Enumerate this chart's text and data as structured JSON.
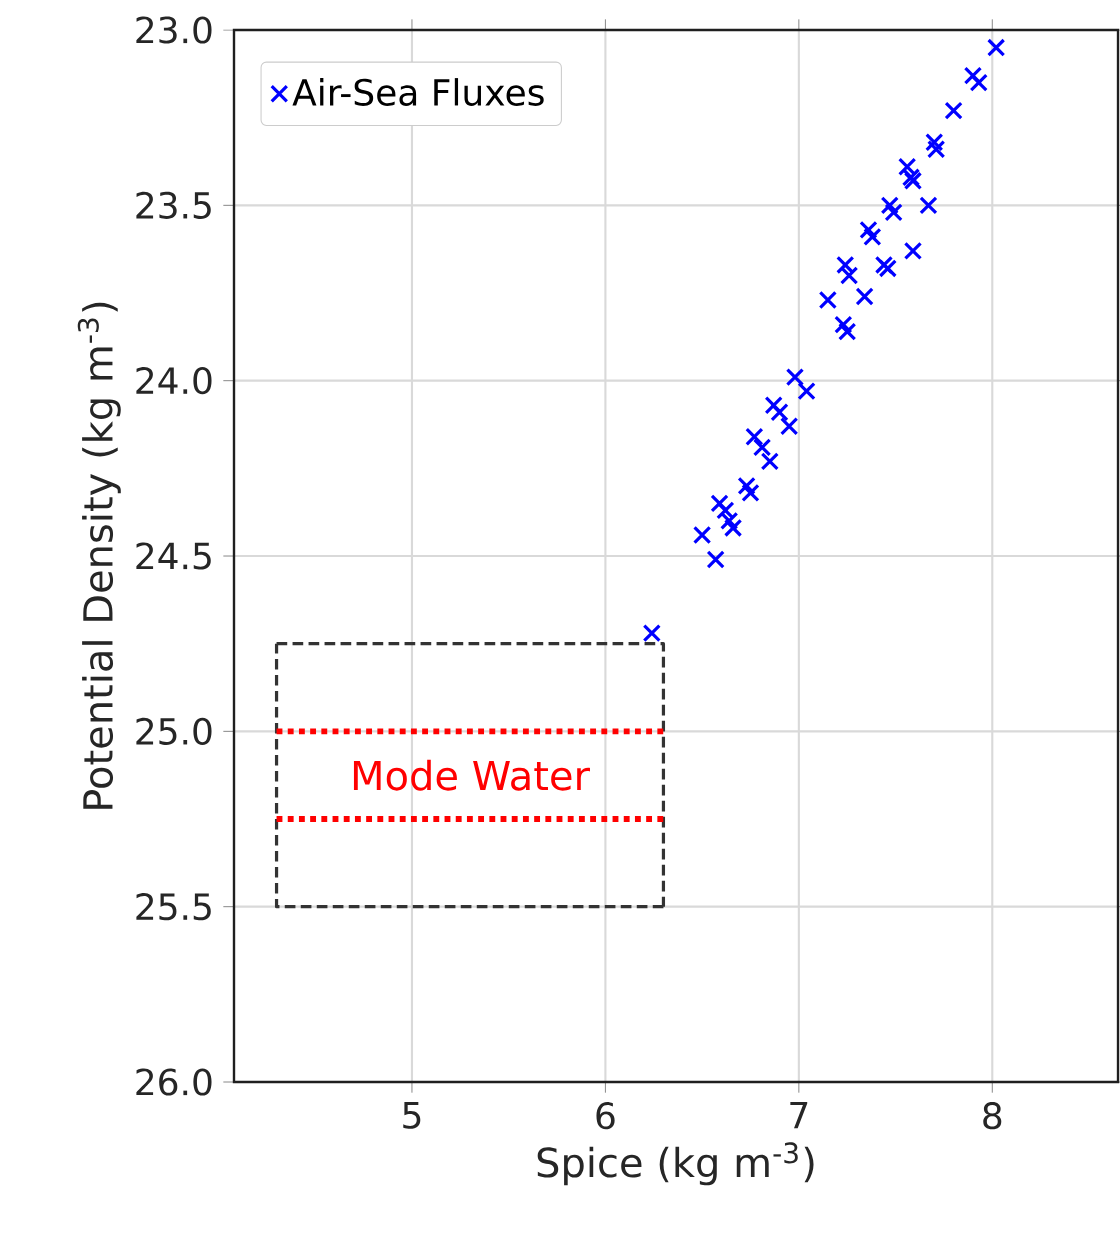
{
  "chart_data": {
    "type": "scatter",
    "xlabel": "Spice (kg m$^{-3}$)",
    "ylabel": "Potential Density (kg m$^{-3}$)",
    "xlim": [
      4.08,
      8.65
    ],
    "ylim": [
      26.0,
      23.0
    ],
    "xticks": [
      5,
      6,
      7,
      8
    ],
    "yticks": [
      {
        "value": 23.0,
        "label": "23.0"
      },
      {
        "value": 23.5,
        "label": "23.5"
      },
      {
        "value": 24.0,
        "label": "24.0"
      },
      {
        "value": 24.5,
        "label": "24.5"
      },
      {
        "value": 25.0,
        "label": "25.0"
      },
      {
        "value": 25.5,
        "label": "25.5"
      },
      {
        "value": 26.0,
        "label": "26.0"
      }
    ],
    "grid": true,
    "legend": "top left",
    "marker": "cross",
    "series": [
      {
        "name": "Air-Sea Fluxes",
        "color": "#0000ff",
        "x": [
          8.02,
          7.9,
          7.93,
          7.8,
          7.7,
          7.71,
          7.56,
          7.58,
          7.59,
          7.47,
          7.49,
          7.67,
          7.36,
          7.38,
          7.59,
          7.44,
          7.46,
          7.34,
          7.24,
          7.26,
          7.15,
          7.23,
          7.25,
          6.98,
          7.04,
          6.87,
          6.9,
          6.95,
          6.77,
          6.81,
          6.85,
          6.73,
          6.75,
          6.59,
          6.62,
          6.64,
          6.66,
          6.5,
          6.57,
          6.24
        ],
        "values": [
          23.05,
          23.13,
          23.15,
          23.23,
          23.32,
          23.34,
          23.39,
          23.42,
          23.43,
          23.5,
          23.52,
          23.5,
          23.57,
          23.59,
          23.63,
          23.67,
          23.68,
          23.76,
          23.67,
          23.7,
          23.77,
          23.84,
          23.86,
          23.99,
          24.03,
          24.07,
          24.09,
          24.13,
          24.16,
          24.19,
          24.23,
          24.3,
          24.32,
          24.35,
          24.37,
          24.4,
          24.42,
          24.44,
          24.51,
          24.72
        ]
      },
      {
        "type": "line",
        "color": "#333333",
        "marker": "none",
        "line_style": "dashed",
        "x": [
          4.3,
          6.3,
          6.3
        ],
        "values": [
          24.75,
          24.75,
          25.5
        ]
      },
      {
        "type": "line",
        "color": "#333333",
        "marker": "none",
        "line_style": "dashed",
        "x": [
          6.3,
          4.3,
          4.3
        ],
        "values": [
          25.5,
          25.5,
          24.75
        ]
      },
      {
        "type": "line",
        "color": "#ff0000",
        "marker": "none",
        "line_style": "dotted",
        "x": [
          4.3,
          6.3
        ],
        "values": [
          25.0,
          25.0
        ]
      },
      {
        "type": "line",
        "color": "#ff0000",
        "marker": "none",
        "line_style": "dotted",
        "x": [
          4.3,
          6.3
        ],
        "values": [
          25.25,
          25.25
        ]
      }
    ],
    "annotations": [
      "Mode Water"
    ]
  }
}
